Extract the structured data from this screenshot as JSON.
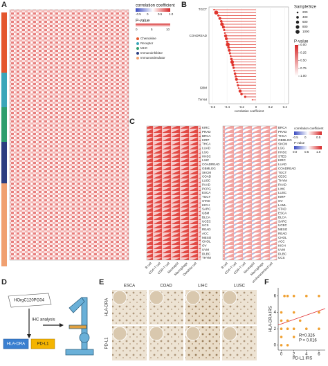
{
  "panel_a": {
    "letter": "A",
    "corr_title": "correlation coefficient",
    "corr_ticks": [
      "-0.5",
      "0",
      "0.5",
      "1.0"
    ],
    "p_title": "P-value",
    "p_ticks": [
      "0",
      "5",
      "10"
    ],
    "categories": [
      "Chemokine",
      "Receptor",
      "MHC",
      "Immunoinhibitor",
      "Immunostimulator"
    ],
    "category_colors": [
      "#e4572e",
      "#3aa6b9",
      "#2e9e6e",
      "#2c3e80",
      "#f0a070"
    ]
  },
  "panel_b": {
    "letter": "B",
    "type": "lollipop",
    "color": "#e0342c",
    "categories": [
      "TGCT",
      null,
      null,
      null,
      null,
      null,
      null,
      null,
      null,
      "COADREAD",
      null,
      null,
      null,
      null,
      null,
      null,
      null,
      null,
      null,
      null,
      null,
      null,
      null,
      null,
      null,
      null,
      null,
      "GBM",
      null,
      null,
      null,
      "THYM"
    ],
    "values": [
      -0.58,
      -0.55,
      -0.52,
      -0.5,
      -0.48,
      -0.47,
      -0.45,
      -0.44,
      -0.43,
      -0.42,
      -0.41,
      -0.4,
      -0.39,
      -0.38,
      -0.37,
      -0.36,
      -0.35,
      -0.34,
      -0.33,
      -0.32,
      -0.31,
      -0.3,
      -0.29,
      -0.28,
      -0.27,
      -0.26,
      -0.25,
      -0.24,
      -0.22,
      -0.2,
      -0.15,
      -0.05
    ],
    "sizes": [
      150,
      1000,
      300,
      500,
      400,
      800,
      500,
      300,
      200,
      600,
      500,
      300,
      1000,
      400,
      500,
      300,
      200,
      400,
      800,
      500,
      300,
      200,
      400,
      300,
      500,
      200,
      300,
      150,
      600,
      400,
      300,
      120
    ],
    "xlim": [
      -0.65,
      0.45
    ],
    "xticks": [
      -0.6,
      -0.4,
      -0.2,
      0,
      0.2,
      0.4
    ],
    "xlabel": "correlation coefficient",
    "size_title": "SampleSize",
    "size_ticks": [
      200,
      400,
      600,
      800,
      1000
    ],
    "p_title": "P-value",
    "p_ticks": [
      {
        "value": 0,
        "label": "0.00"
      },
      {
        "value": 0.25,
        "label": "0.25"
      },
      {
        "value": 0.5,
        "label": "0.50"
      },
      {
        "value": 0.75,
        "label": "0.75"
      },
      {
        "value": 1,
        "label": "1.00"
      }
    ]
  },
  "panel_c": {
    "letter": "C",
    "left_rows": [
      "KIRC",
      "PRAD",
      "BRCA",
      "KIRP",
      "THCA",
      "LUAD",
      "LGG",
      "HNSC",
      "LIHC",
      "COADREAD",
      "GBMLGG",
      "SKCM",
      "COAD",
      "LUSC",
      "PAAD",
      "PCPG",
      "ESCA",
      "TGCT",
      "STAD",
      "KICH",
      "SARC",
      "GBM",
      "BLCA",
      "UCEC",
      "UCS",
      "READ",
      "ACC",
      "MESO",
      "CHOL",
      "OV",
      "UVM",
      "DLBC",
      "THYM"
    ],
    "right_rows": [
      "BRCA",
      "PRAD",
      "THCA",
      "GBMLGG",
      "SKCM",
      "LGG",
      "HNSC",
      "STES",
      "KIRC",
      "LUAD",
      "COADREAD",
      "TGCT",
      "CESC",
      "THYM",
      "PAAD",
      "LIHC",
      "LUSC",
      "KIRP",
      "OV",
      "LAML",
      "STAD",
      "ESCA",
      "BLCA",
      "SARC",
      "UCEC",
      "MESO",
      "READ",
      "CHOL",
      "ACC",
      "KICH",
      "UVM",
      "DLBC",
      "UCS"
    ],
    "left_cols": [
      "B cell",
      "CD4+T cell",
      "CD8+T cell",
      "Neutrophil",
      "Macrophage",
      "Dendritic cell"
    ],
    "right_cols": [
      "B cell",
      "CD4+T cell",
      "CD8+T cell",
      "Neutrophil",
      "Macrophage",
      "uncharacterized cell"
    ],
    "corr_title": "correlation coefficient",
    "corr_ticks": [
      "-0.5",
      "0",
      "0.5"
    ],
    "p_title": "P-value",
    "p_ticks": [
      "0.0",
      "0.5",
      "1.0"
    ]
  },
  "panel_d": {
    "letter": "D",
    "slide": "HOrgC120PG04",
    "step": "IHC analysis",
    "markers": [
      "HLA-DRA",
      "PD-L1"
    ]
  },
  "panel_e": {
    "letter": "E",
    "columns": [
      "ESCA",
      "COAD",
      "LIHC",
      "LUSC"
    ],
    "rows": [
      "HLA-DRA",
      "PD-L1"
    ]
  },
  "panel_f": {
    "letter": "F",
    "type": "scatter",
    "color": "#f0a030",
    "line_color": "#e03030",
    "x": [
      0,
      0,
      0,
      0,
      0,
      0.5,
      1,
      1,
      1,
      1,
      2,
      2,
      2,
      2,
      3,
      4,
      4,
      6,
      6,
      6
    ],
    "y": [
      0,
      1,
      2,
      3,
      4,
      6,
      0,
      2,
      3,
      6,
      1,
      2,
      4,
      6,
      3,
      2,
      6,
      2,
      4,
      6
    ],
    "xlim": [
      -0.5,
      7
    ],
    "ylim": [
      -0.6,
      7
    ],
    "xticks": [
      0,
      2,
      4,
      6
    ],
    "yticks": [
      0,
      2,
      4,
      6
    ],
    "xlabel": "PD-L1 IRS",
    "ylabel": "HLA-DRA IRS",
    "annotations": [
      "R=0.326",
      "P = 0.016"
    ]
  }
}
